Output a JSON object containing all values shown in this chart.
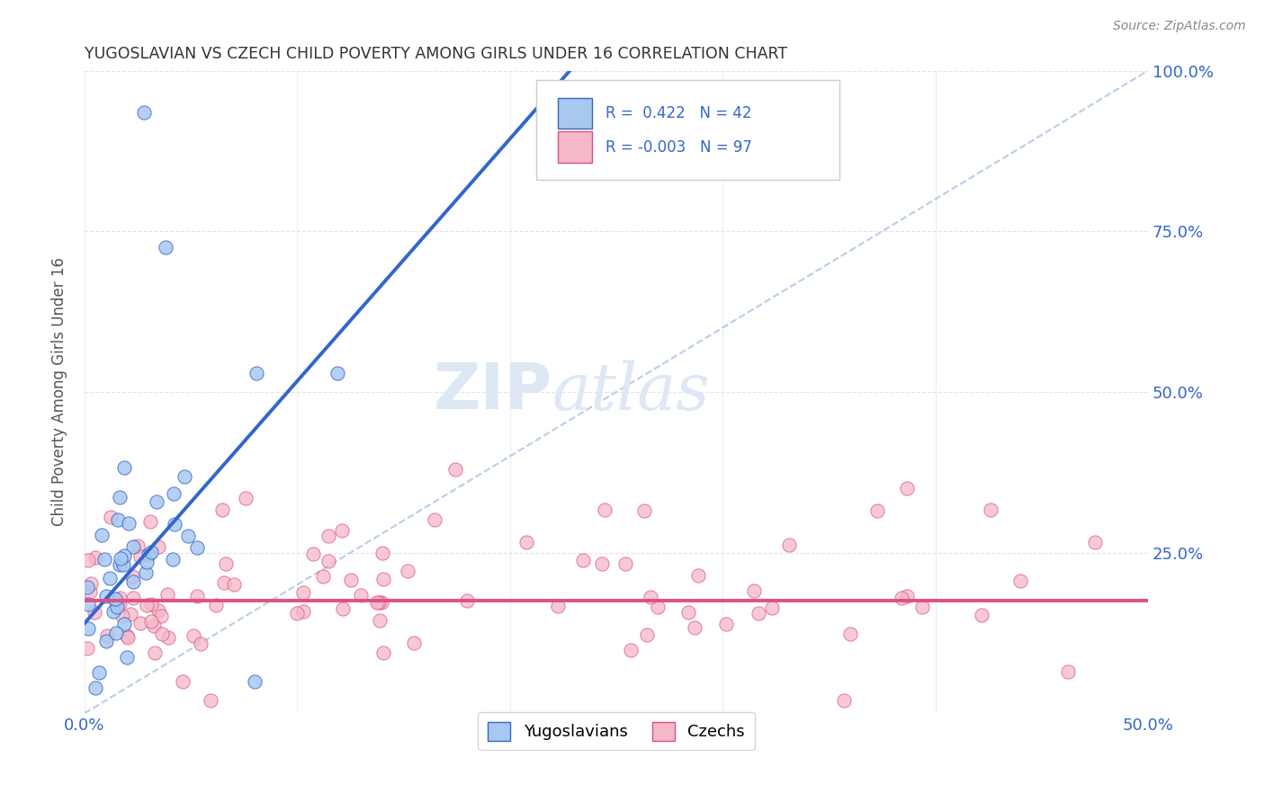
{
  "title": "YUGOSLAVIAN VS CZECH CHILD POVERTY AMONG GIRLS UNDER 16 CORRELATION CHART",
  "source": "Source: ZipAtlas.com",
  "ylabel": "Child Poverty Among Girls Under 16",
  "xlim": [
    0.0,
    0.5
  ],
  "ylim": [
    0.0,
    1.0
  ],
  "yug_color": "#a8c8f0",
  "czech_color": "#f4b8c8",
  "yug_line_color": "#3366cc",
  "czech_line_color": "#e05080",
  "dashed_line_color": "#b0c8e8",
  "watermark_zip": "ZIP",
  "watermark_atlas": "atlas",
  "legend_R_yug": "0.422",
  "legend_N_yug": "42",
  "legend_R_czech": "-0.003",
  "legend_N_czech": "97",
  "legend_color": "#3366cc",
  "text_color_dark": "#333333",
  "source_color": "#888888",
  "ylabel_color": "#555555",
  "tick_color": "#3366cc",
  "grid_color": "#dddddd"
}
